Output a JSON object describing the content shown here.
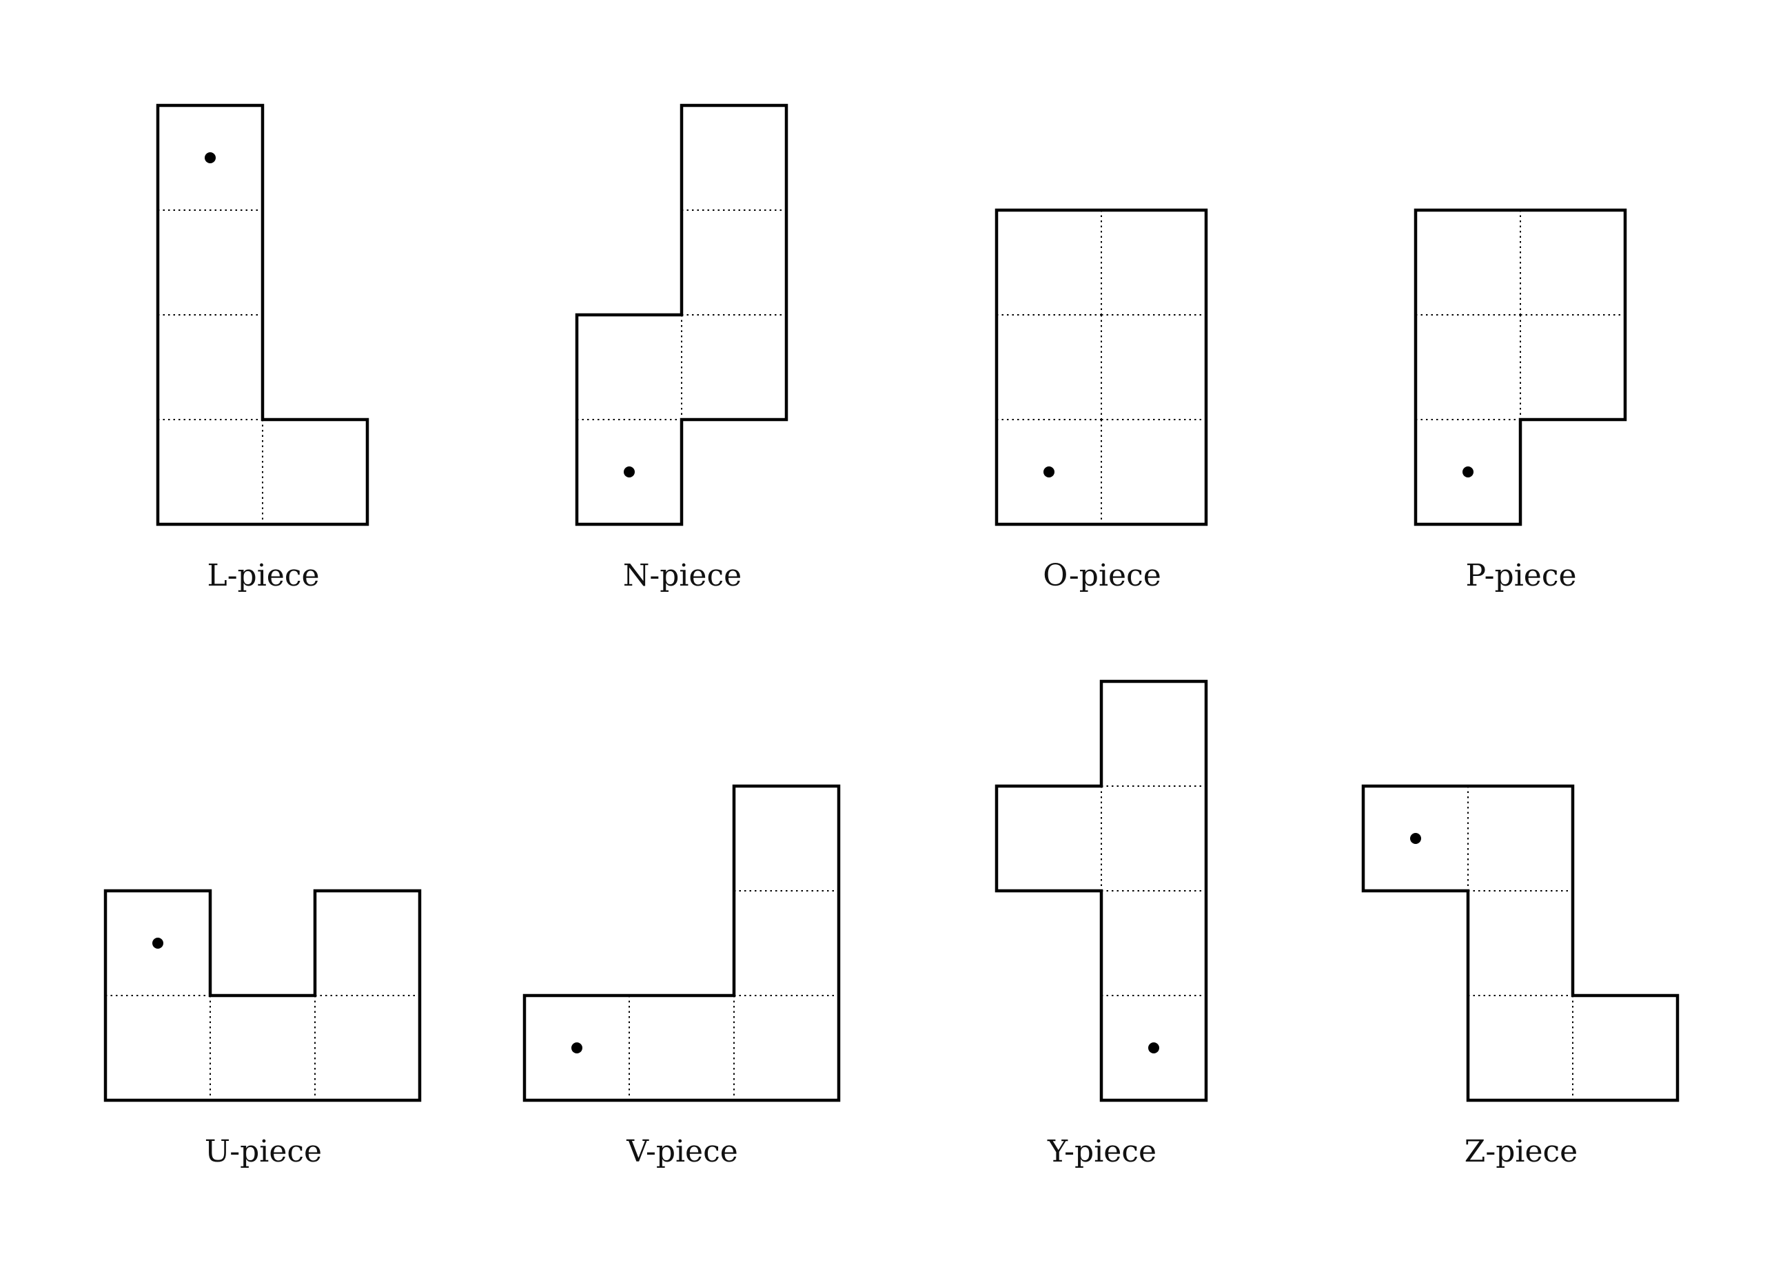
{
  "pieces": [
    {
      "id": "L",
      "label": "L-piece",
      "cells": [
        [
          0,
          0
        ],
        [
          0,
          1
        ],
        [
          0,
          2
        ],
        [
          0,
          3
        ],
        [
          1,
          3
        ]
      ],
      "dot": [
        0,
        0
      ]
    },
    {
      "id": "N",
      "label": "N-piece",
      "cells": [
        [
          1,
          0
        ],
        [
          1,
          1
        ],
        [
          0,
          2
        ],
        [
          1,
          2
        ],
        [
          0,
          3
        ]
      ],
      "dot": [
        0,
        3
      ]
    },
    {
      "id": "O",
      "label": "O-piece",
      "cells": [
        [
          0,
          0
        ],
        [
          1,
          0
        ],
        [
          0,
          1
        ],
        [
          1,
          1
        ],
        [
          0,
          2
        ],
        [
          1,
          2
        ]
      ],
      "dot": [
        0,
        2
      ]
    },
    {
      "id": "P",
      "label": "P-piece",
      "cells": [
        [
          0,
          0
        ],
        [
          1,
          0
        ],
        [
          0,
          1
        ],
        [
          1,
          1
        ],
        [
          0,
          2
        ]
      ],
      "dot": [
        0,
        2
      ]
    },
    {
      "id": "U",
      "label": "U-piece",
      "cells": [
        [
          0,
          0
        ],
        [
          2,
          0
        ],
        [
          0,
          1
        ],
        [
          1,
          1
        ],
        [
          2,
          1
        ]
      ],
      "dot": [
        0,
        0
      ]
    },
    {
      "id": "V",
      "label": "V-piece",
      "cells": [
        [
          2,
          0
        ],
        [
          2,
          1
        ],
        [
          0,
          2
        ],
        [
          1,
          2
        ],
        [
          2,
          2
        ]
      ],
      "dot": [
        0,
        2
      ]
    },
    {
      "id": "Y",
      "label": "Y-piece",
      "cells": [
        [
          1,
          0
        ],
        [
          0,
          1
        ],
        [
          1,
          1
        ],
        [
          1,
          2
        ],
        [
          1,
          3
        ]
      ],
      "dot": [
        1,
        3
      ]
    },
    {
      "id": "Z",
      "label": "Z-piece",
      "cells": [
        [
          0,
          0
        ],
        [
          1,
          0
        ],
        [
          1,
          1
        ],
        [
          1,
          2
        ],
        [
          2,
          2
        ]
      ],
      "dot": [
        0,
        0
      ]
    }
  ]
}
